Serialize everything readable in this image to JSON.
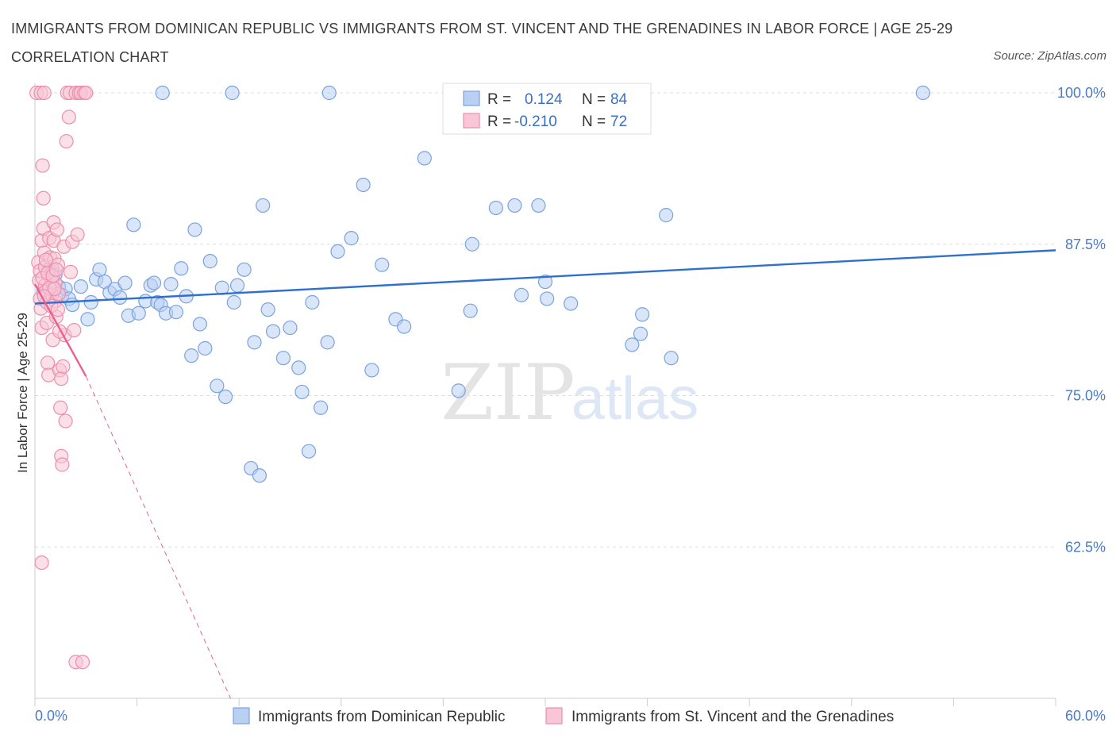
{
  "title": "IMMIGRANTS FROM DOMINICAN REPUBLIC VS IMMIGRANTS FROM ST. VINCENT AND THE GRENADINES IN LABOR FORCE | AGE 25-29 CORRELATION CHART",
  "source": "Source: ZipAtlas.com",
  "watermark": {
    "zip": "ZIP",
    "atlas": "atlas"
  },
  "colors": {
    "blue_fill": "#b9d0f3",
    "blue_stroke": "#7aa3de",
    "blue_line": "#2f6fce",
    "pink_fill": "#f8c6d6",
    "pink_stroke": "#ec8fae",
    "pink_line": "#e8608f",
    "grid": "#dddddd",
    "tick_text": "#4a7ac8"
  },
  "legend": {
    "blue": {
      "r_label": "R =",
      "r_value": "0.124",
      "n_label": "N =",
      "n_value": "84"
    },
    "pink": {
      "r_label": "R =",
      "r_value": "-0.210",
      "n_label": "N =",
      "n_value": "72"
    }
  },
  "chart_data": {
    "type": "scatter",
    "title": "IMMIGRANTS FROM DOMINICAN REPUBLIC VS IMMIGRANTS FROM ST. VINCENT AND THE GRENADINES IN LABOR FORCE | AGE 25-29 CORRELATION CHART",
    "xlabel": "",
    "ylabel": "In Labor Force | Age 25-29",
    "xlim": [
      0,
      60
    ],
    "ylim": [
      50,
      101
    ],
    "x_tick_labels": [
      "0.0%",
      "60.0%"
    ],
    "y_ticks": [
      62.5,
      75.0,
      87.5,
      100.0
    ],
    "y_tick_labels": [
      "62.5%",
      "75.0%",
      "87.5%",
      "100.0%"
    ],
    "series": [
      {
        "name": "Immigrants from Dominican Republic",
        "color": "blue",
        "trend": {
          "x0": 0,
          "y0": 82.6,
          "x1": 60,
          "y1": 87.0,
          "style": "solid"
        },
        "points": [
          [
            0.5,
            83.5
          ],
          [
            0.8,
            85.2
          ],
          [
            1.0,
            85.6
          ],
          [
            1.2,
            85.0
          ],
          [
            1.4,
            84.0
          ],
          [
            1.6,
            83.3
          ],
          [
            1.8,
            83.8
          ],
          [
            2.0,
            83.0
          ],
          [
            2.2,
            82.5
          ],
          [
            2.7,
            84.0
          ],
          [
            3.1,
            81.3
          ],
          [
            3.3,
            82.7
          ],
          [
            3.6,
            84.6
          ],
          [
            3.8,
            85.4
          ],
          [
            4.1,
            84.4
          ],
          [
            4.4,
            83.5
          ],
          [
            4.7,
            83.8
          ],
          [
            5.0,
            83.1
          ],
          [
            5.3,
            84.3
          ],
          [
            5.5,
            81.6
          ],
          [
            5.8,
            89.1
          ],
          [
            6.1,
            81.8
          ],
          [
            6.5,
            82.8
          ],
          [
            6.8,
            84.1
          ],
          [
            7.0,
            84.3
          ],
          [
            7.2,
            82.7
          ],
          [
            7.4,
            82.5
          ],
          [
            7.7,
            81.8
          ],
          [
            8.0,
            84.2
          ],
          [
            8.3,
            81.9
          ],
          [
            8.6,
            85.5
          ],
          [
            8.9,
            83.2
          ],
          [
            9.2,
            78.3
          ],
          [
            9.4,
            88.7
          ],
          [
            9.7,
            80.9
          ],
          [
            10.0,
            78.9
          ],
          [
            10.3,
            86.1
          ],
          [
            10.7,
            75.8
          ],
          [
            11.0,
            83.9
          ],
          [
            11.2,
            74.9
          ],
          [
            11.7,
            82.7
          ],
          [
            11.9,
            84.1
          ],
          [
            12.3,
            85.4
          ],
          [
            12.7,
            69.0
          ],
          [
            12.9,
            79.4
          ],
          [
            13.2,
            68.4
          ],
          [
            13.4,
            90.7
          ],
          [
            13.7,
            82.1
          ],
          [
            14.0,
            80.3
          ],
          [
            14.6,
            78.1
          ],
          [
            15.0,
            80.6
          ],
          [
            15.5,
            77.3
          ],
          [
            15.7,
            75.3
          ],
          [
            16.1,
            70.4
          ],
          [
            16.3,
            82.7
          ],
          [
            16.8,
            74.0
          ],
          [
            17.2,
            79.4
          ],
          [
            17.8,
            86.9
          ],
          [
            18.6,
            88.0
          ],
          [
            19.3,
            92.4
          ],
          [
            19.8,
            77.1
          ],
          [
            20.4,
            85.8
          ],
          [
            21.2,
            81.3
          ],
          [
            21.7,
            80.7
          ],
          [
            22.9,
            94.6
          ],
          [
            24.9,
            75.4
          ],
          [
            25.6,
            82.0
          ],
          [
            25.7,
            87.5
          ],
          [
            27.1,
            90.5
          ],
          [
            28.2,
            90.7
          ],
          [
            28.6,
            83.3
          ],
          [
            29.6,
            90.7
          ],
          [
            30.0,
            84.4
          ],
          [
            30.1,
            83.0
          ],
          [
            31.5,
            82.6
          ],
          [
            35.1,
            79.2
          ],
          [
            35.6,
            80.1
          ],
          [
            35.7,
            81.7
          ],
          [
            37.1,
            89.9
          ],
          [
            37.4,
            78.1
          ],
          [
            7.5,
            100.0
          ],
          [
            11.6,
            100.0
          ],
          [
            17.3,
            100.0
          ],
          [
            52.2,
            100.0
          ]
        ]
      },
      {
        "name": "Immigrants from St. Vincent and the Grenadines",
        "color": "pink",
        "trend": {
          "x0": 0,
          "y0": 84.2,
          "x1": 3.0,
          "y1": 76.6,
          "style": "solid",
          "dash_to": {
            "x": 11.5,
            "y": 50.0
          }
        },
        "points": [
          [
            0.1,
            100.0
          ],
          [
            0.2,
            86.0
          ],
          [
            0.25,
            84.5
          ],
          [
            0.3,
            85.3
          ],
          [
            0.3,
            83.0
          ],
          [
            0.35,
            82.2
          ],
          [
            0.4,
            87.8
          ],
          [
            0.4,
            80.6
          ],
          [
            0.45,
            94.0
          ],
          [
            0.5,
            91.3
          ],
          [
            0.5,
            88.8
          ],
          [
            0.55,
            86.8
          ],
          [
            0.6,
            85.6
          ],
          [
            0.6,
            84.1
          ],
          [
            0.65,
            83.6
          ],
          [
            0.7,
            82.7
          ],
          [
            0.7,
            81.0
          ],
          [
            0.75,
            77.7
          ],
          [
            0.8,
            76.7
          ],
          [
            0.85,
            88.0
          ],
          [
            0.9,
            86.4
          ],
          [
            0.95,
            85.0
          ],
          [
            1.0,
            84.4
          ],
          [
            1.0,
            83.3
          ],
          [
            1.05,
            79.6
          ],
          [
            1.1,
            89.3
          ],
          [
            1.1,
            87.8
          ],
          [
            1.15,
            86.3
          ],
          [
            1.2,
            84.3
          ],
          [
            1.2,
            82.8
          ],
          [
            1.25,
            81.5
          ],
          [
            1.3,
            88.7
          ],
          [
            1.35,
            85.8
          ],
          [
            1.4,
            83.4
          ],
          [
            1.45,
            77.1
          ],
          [
            1.5,
            74.0
          ],
          [
            1.55,
            70.0
          ],
          [
            1.6,
            69.3
          ],
          [
            1.7,
            87.3
          ],
          [
            1.75,
            80.0
          ],
          [
            1.8,
            72.9
          ],
          [
            1.85,
            96.0
          ],
          [
            1.9,
            100.0
          ],
          [
            2.0,
            98.0
          ],
          [
            2.05,
            100.0
          ],
          [
            2.1,
            85.2
          ],
          [
            2.2,
            87.7
          ],
          [
            2.3,
            80.4
          ],
          [
            2.4,
            100.0
          ],
          [
            2.5,
            88.3
          ],
          [
            2.6,
            100.0
          ],
          [
            2.7,
            100.0
          ],
          [
            2.9,
            100.0
          ],
          [
            3.0,
            100.0
          ],
          [
            0.35,
            100.0
          ],
          [
            0.55,
            100.0
          ],
          [
            0.45,
            84.7
          ],
          [
            0.65,
            86.2
          ],
          [
            0.75,
            85.1
          ],
          [
            0.85,
            83.9
          ],
          [
            0.95,
            82.4
          ],
          [
            1.05,
            84.9
          ],
          [
            1.15,
            83.8
          ],
          [
            1.25,
            85.4
          ],
          [
            1.35,
            82.1
          ],
          [
            1.45,
            80.3
          ],
          [
            1.55,
            76.4
          ],
          [
            1.65,
            77.4
          ],
          [
            0.4,
            61.2
          ],
          [
            2.4,
            53.0
          ],
          [
            2.8,
            53.0
          ],
          [
            0.55,
            83.2
          ]
        ]
      }
    ]
  },
  "bottom_legend": {
    "blue_label": "Immigrants from Dominican Republic",
    "pink_label": "Immigrants from St. Vincent and the Grenadines"
  }
}
